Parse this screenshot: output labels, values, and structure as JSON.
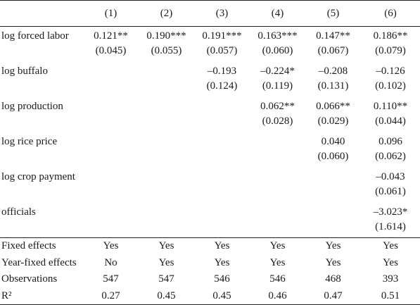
{
  "table": {
    "columns": [
      "",
      "(1)",
      "(2)",
      "(3)",
      "(4)",
      "(5)",
      "(6)"
    ],
    "coefficients": [
      {
        "label": "log forced labor",
        "cells": [
          {
            "est": "0.121**",
            "se": "(0.045)"
          },
          {
            "est": "0.190***",
            "se": "(0.055)"
          },
          {
            "est": "0.191***",
            "se": "(0.057)"
          },
          {
            "est": "0.163***",
            "se": "(0.060)"
          },
          {
            "est": "0.147**",
            "se": "(0.067)"
          },
          {
            "est": "0.186**",
            "se": "(0.079)"
          }
        ]
      },
      {
        "label": "log buffalo",
        "cells": [
          {
            "est": "",
            "se": ""
          },
          {
            "est": "",
            "se": ""
          },
          {
            "est": "–0.193",
            "se": "(0.124)"
          },
          {
            "est": "–0.224*",
            "se": "(0.119)"
          },
          {
            "est": "–0.208",
            "se": "(0.131)"
          },
          {
            "est": "–0.126",
            "se": "(0.102)"
          }
        ]
      },
      {
        "label": "log production",
        "cells": [
          {
            "est": "",
            "se": ""
          },
          {
            "est": "",
            "se": ""
          },
          {
            "est": "",
            "se": ""
          },
          {
            "est": "0.062**",
            "se": "(0.028)"
          },
          {
            "est": "0.066**",
            "se": "(0.029)"
          },
          {
            "est": "0.110**",
            "se": "(0.044)"
          }
        ]
      },
      {
        "label": "log rice price",
        "cells": [
          {
            "est": "",
            "se": ""
          },
          {
            "est": "",
            "se": ""
          },
          {
            "est": "",
            "se": ""
          },
          {
            "est": "",
            "se": ""
          },
          {
            "est": "0.040",
            "se": "(0.060)"
          },
          {
            "est": "0.096",
            "se": "(0.062)"
          }
        ]
      },
      {
        "label": "log crop payment",
        "cells": [
          {
            "est": "",
            "se": ""
          },
          {
            "est": "",
            "se": ""
          },
          {
            "est": "",
            "se": ""
          },
          {
            "est": "",
            "se": ""
          },
          {
            "est": "",
            "se": ""
          },
          {
            "est": "–0.043",
            "se": "(0.061)"
          }
        ]
      },
      {
        "label": "officials",
        "cells": [
          {
            "est": "",
            "se": ""
          },
          {
            "est": "",
            "se": ""
          },
          {
            "est": "",
            "se": ""
          },
          {
            "est": "",
            "se": ""
          },
          {
            "est": "",
            "se": ""
          },
          {
            "est": "–3.023*",
            "se": "(1.614)"
          }
        ]
      }
    ],
    "stats": [
      {
        "label": "Fixed effects",
        "values": [
          "Yes",
          "Yes",
          "Yes",
          "Yes",
          "Yes",
          "Yes"
        ]
      },
      {
        "label": "Year-fixed effects",
        "values": [
          "No",
          "Yes",
          "Yes",
          "Yes",
          "Yes",
          "Yes"
        ]
      },
      {
        "label": "Observations",
        "values": [
          "547",
          "547",
          "546",
          "546",
          "468",
          "393"
        ]
      },
      {
        "label": "R²",
        "values": [
          "0.27",
          "0.45",
          "0.45",
          "0.46",
          "0.47",
          "0.51"
        ]
      }
    ]
  }
}
